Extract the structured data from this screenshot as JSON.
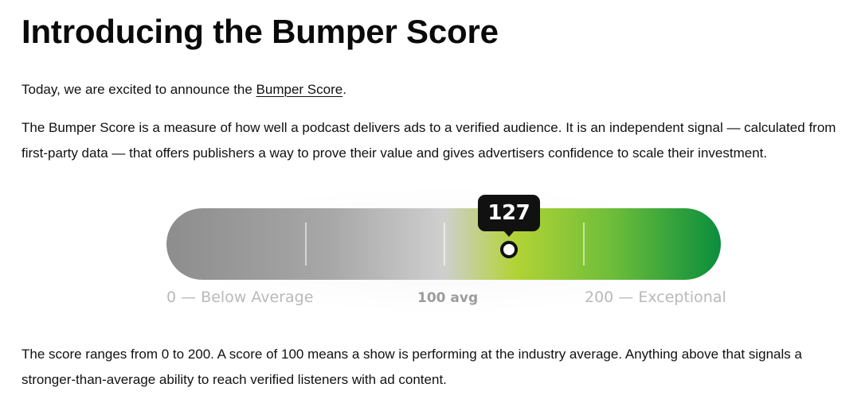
{
  "article": {
    "title": "Introducing the Bumper Score",
    "intro_before": "Today, we are excited to announce the ",
    "intro_link": "Bumper Score",
    "intro_after": ".",
    "description": "The Bumper Score is a measure of how well a podcast delivers ads to a verified audience. It is an independent signal — calculated from first-party data — that offers publishers a way to prove their value and gives advertisers confidence to scale their investment.",
    "explanation": "The score ranges from 0 to 200. A score of 100 means a show is performing at the industry average. Anything above that signals a stronger-than-average ability to reach verified listeners with ad content."
  },
  "gauge": {
    "score": "127",
    "score_value": 127,
    "min_value": 0,
    "max_value": 200,
    "label_min": "0 — Below Average",
    "label_mid": "100 avg",
    "label_max": "200 — Exceptional",
    "colors": {
      "low": "#8d8d8d",
      "mid": "#cfcfcf",
      "good": "#b2d335",
      "high": "#0a8e3d",
      "bubble": "#111111"
    }
  }
}
